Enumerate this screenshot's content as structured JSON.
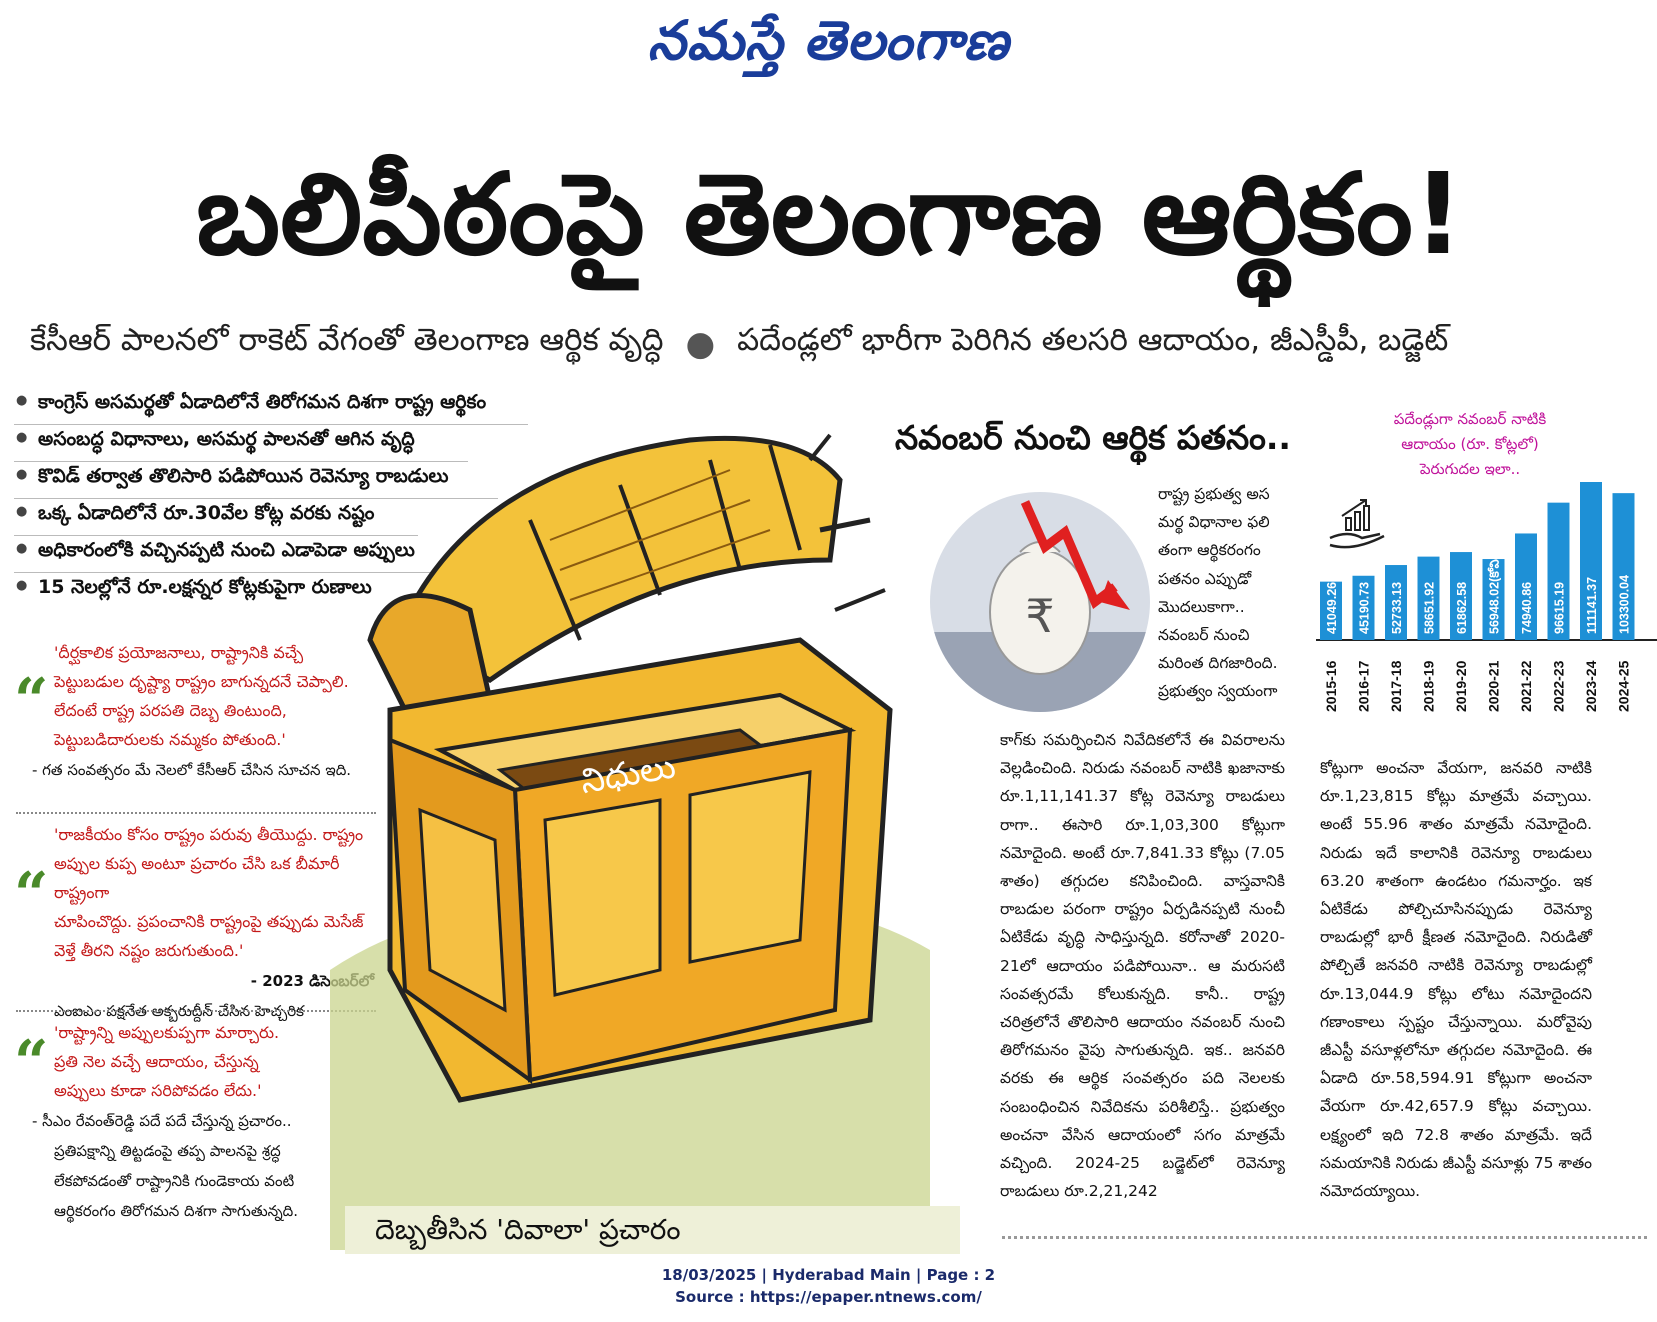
{
  "masthead": "నమస్తే తెలంగాణ",
  "headline": "బలిపీఠంపై తెలంగాణ ఆర్థికం!",
  "deck": {
    "part1": "కేసీఆర్ పాలనలో రాకెట్ వేగంతో తెలంగాణ ఆర్థిక వృద్ధి",
    "part2": "పదేండ్లలో భారీగా పెరిగిన తలసరి ఆదాయం, జీఎస్డీపీ, బడ్జెట్"
  },
  "bullets": [
    "కాంగ్రెస్ అసమర్థతో ఏడాదిలోనే తిరోగమన దిశగా రాష్ట్ర ఆర్థికం",
    "అసంబద్ధ విధానాలు, అసమర్థ పాలనతో ఆగిన వృద్ధి",
    "కొవిడ్ తర్వాత తొలిసారి పడిపోయిన రెవెన్యూ రాబడులు",
    "ఒక్క ఏడాదిలోనే రూ.30వేల కోట్ల వరకు నష్టం",
    "అధికారంలోకి వచ్చినప్పటి నుంచి ఎడాపెడా అప్పులు",
    "15 నెలల్లోనే రూ.లక్షన్నర కోట్లకుపైగా రుణాలు"
  ],
  "quotes": [
    {
      "lines": [
        "'దీర్ఘకాలిక ప్రయోజనాలు, రాష్ట్రానికి వచ్చే",
        "పెట్టుబడుల దృష్ట్యా రాష్ట్రం బాగున్నదనే చెప్పాలి.",
        "లేదంటే రాష్ట్ర పరపతి దెబ్బ తింటుంది,",
        "పెట్టుబడిదారులకు నమ్మకం పోతుంది.'"
      ],
      "attribution": "- గత సంవత్సరం మే నెలలో కేసీఆర్ చేసిన సూచన ఇది."
    },
    {
      "lines": [
        "'రాజకీయం కోసం రాష్ట్రం పరువు తీయొద్దు. రాష్ట్రం",
        "అప్పుల కుప్ప అంటూ ప్రచారం చేసి ఒక బీమారీ రాష్ట్రంగా",
        "చూపించొద్దు. ప్రపంచానికి రాష్ట్రంపై తప్పుడు మెసేజ్",
        "వెళ్తే తీరని నష్టం జరుగుతుంది.'"
      ],
      "attribution_1": "- 2023 డిసెంబర్‌లో",
      "attribution_2": "ఎంఐఎం పక్షనేత అక్బరుద్దీన్ చేసిన హెచ్చరిక"
    },
    {
      "lines": [
        "'రాష్ట్రాన్ని అప్పులకుప్పగా మార్చారు.",
        "ప్రతి నెల వచ్చే ఆదాయం, చేస్తున్న",
        "అప్పులు కూడా సరిపోవడం లేదు.'"
      ],
      "attribution_lines": [
        "- సీఎం రేవంత్‌రెడ్డి పదే పదే చేస్తున్న ప్రచారం..",
        "ప్రతిపక్షాన్ని తిట్టడంపై తప్ప పాలనపై శ్రద్ధ",
        "లేకపోవడంతో రాష్ట్రానికి గుండెకాయ వంటి",
        "ఆర్థికరంగం తిరోగమన దిశగా సాగుతున్నది."
      ]
    }
  ],
  "chest_label": "నిధులు",
  "caption": "దెబ్బతీసిన 'దివాలా' ప్రచారం",
  "subheadline": "నవంబర్ నుంచి ఆర్థిక పతనం..",
  "col1a_lines": [
    "రాష్ట్ర ప్రభుత్వ అస",
    "మర్థ విధానాల ఫలి",
    "తంగా ఆర్థికరంగం",
    "పతనం ఎప్పుడో",
    "మొదలుకాగా..",
    "నవంబర్ నుంచి",
    "మరింత దిగజారింది.",
    "ప్రభుత్వం స్వయంగా"
  ],
  "col1b": "కాగ్‌కు సమర్పించిన నివేదికలోనే ఈ వివరాలను వెల్లడించింది. నిరుడు నవంబర్ నాటికి ఖజానాకు రూ.1,11,141.37 కోట్ల రెవెన్యూ రాబడులు రాగా.. ఈసారి రూ.1,03,300 కోట్లుగా నమోదైంది. అంటే రూ.7,841.33 కోట్లు (7.05 శాతం) తగ్గుదల కనిపించింది. వాస్తవానికి రాబడుల పరంగా రాష్ట్రం ఏర్పడినప్పటి నుంచీ ఏటికేడు వృద్ధి సాధిస్తున్నది. కరోనాతో 2020-21లో ఆదాయం పడిపోయినా.. ఆ మరుసటి సంవత్సరమే కోలుకున్నది. కానీ.. రాష్ట్ర చరిత్రలోనే తొలిసారి ఆదాయం నవంబర్ నుంచి తిరోగమనం వైపు సాగుతున్నది. ఇక.. జనవరి వరకు ఈ ఆర్థిక సంవత్సరం పది నెలలకు సంబంధించిన నివేదికను పరిశీలిస్తే.. ప్రభుత్వం అంచనా వేసిన ఆదాయంలో సగం మాత్రమే వచ్చింది. 2024-25 బడ్జెట్‌లో రెవెన్యూ రాబడులు రూ.2,21,242",
  "col2": "కోట్లుగా అంచనా వేయగా, జనవరి నాటికి రూ.1,23,815 కోట్లు మాత్రమే వచ్చాయి. అంటే 55.96 శాతం మాత్రమే నమోదైంది. నిరుడు ఇదే కాలానికి రెవెన్యూ రాబడులు 63.20 శాతంగా ఉండటం గమనార్హం. ఇక ఏటికేడు పోల్చిచూసినప్పుడు రెవెన్యూ రాబడుల్లో భారీ క్షీణత నమోదైంది. నిరుడితో పోల్చితే జనవరి నాటికి రెవెన్యూ రాబడుల్లో రూ.13,044.9 కోట్లు లోటు నమోదైందని గణాంకాలు స్పష్టం చేస్తున్నాయి. మరోవైపు జీఎస్టీ వసూళ్లలోనూ తగ్గుదల నమోదైంది. ఈ ఏడాది రూ.58,594.91 కోట్లుగా అంచనా వేయగా రూ.42,657.9 కోట్లు వచ్చాయి. లక్ష్యంలో ఇది 72.8 శాతం మాత్రమే. ఇదే సమయానికి నిరుడు జీఎస్టీ వసూళ్లు 75 శాతం నమోదయ్యాయి.",
  "chart_data": {
    "type": "bar",
    "title_lines": [
      "పదేండ్లుగా నవంబర్ నాటికి",
      "ఆదాయం (రూ. కోట్లలో)",
      "పెరుగుదల ఇలా.."
    ],
    "categories": [
      "2015-16",
      "2016-17",
      "2017-18",
      "2018-19",
      "2019-20",
      "2020-21",
      "2021-22",
      "2022-23",
      "2023-24",
      "2024-25"
    ],
    "values": [
      41049.26,
      45190.73,
      52733.13,
      58651.92,
      61862.58,
      56948.02,
      74940.86,
      96615.19,
      111141.37,
      103300.04
    ],
    "value_labels": [
      "41049.26",
      "45190.73",
      "52733.13",
      "58651.92",
      "61862.58",
      "56948.02(కోవిడ్)",
      "74940.86",
      "96615.19",
      "111141.37",
      "103300.04"
    ],
    "bar_color": "#1e90d6",
    "icon": "growth-hand-icon",
    "ylim": [
      0,
      111141.37
    ]
  },
  "footer_line1": "18/03/2025 | Hyderabad Main | Page : 2",
  "footer_line2": "Source : https://epaper.ntnews.com/"
}
